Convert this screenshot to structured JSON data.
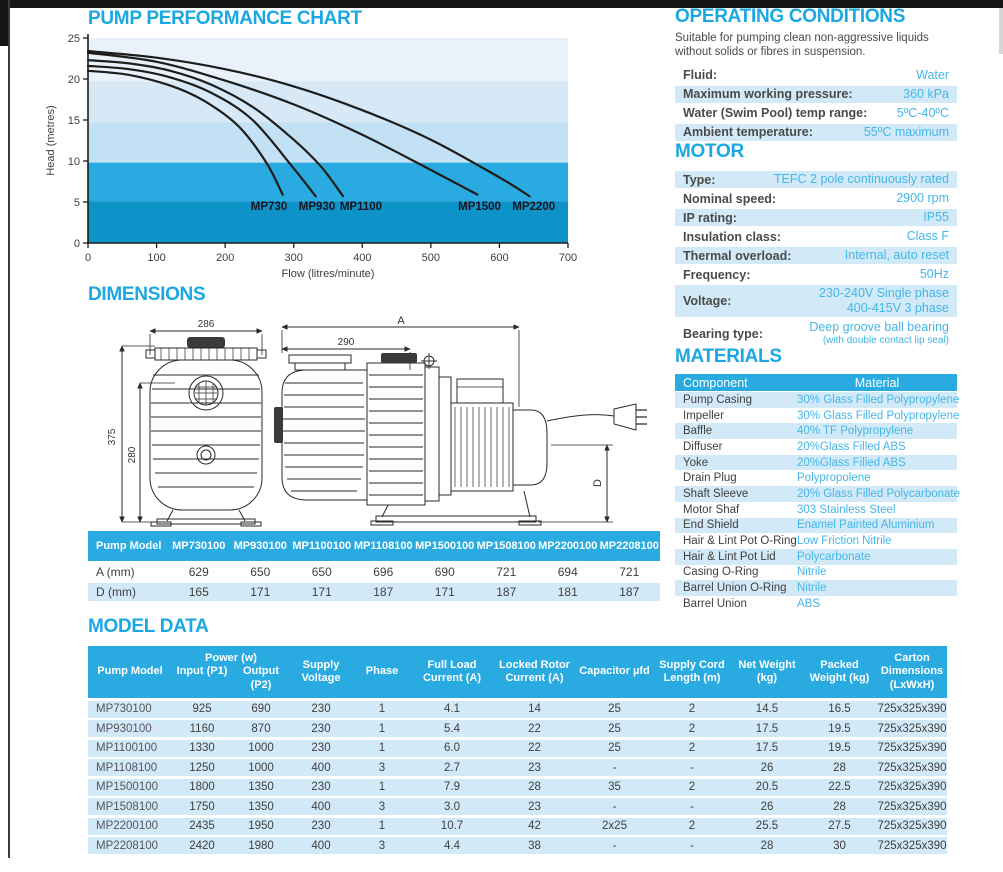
{
  "theme": {
    "accent": "#1ba8e2",
    "table_header_bg": "#29abe2",
    "row_light": "#d2eaf8",
    "value_text": "#45b6e8",
    "curve_color": "#1d1d1b"
  },
  "chart_data": {
    "type": "line",
    "title": "PUMP PERFORMANCE CHART",
    "xlabel": "Flow (litres/minute)",
    "ylabel": "Head (metres)",
    "xlim": [
      0,
      700
    ],
    "ylim": [
      0,
      25
    ],
    "xticks": [
      0,
      100,
      200,
      300,
      400,
      500,
      600,
      700
    ],
    "yticks": [
      0,
      5,
      10,
      15,
      20,
      25
    ],
    "grid": false,
    "legend_position": "labels-on-plot",
    "background_bands": [
      {
        "from": 19.7,
        "to": 25,
        "color": "#e9f2fa"
      },
      {
        "from": 14.7,
        "to": 19.7,
        "color": "#d7e9f7"
      },
      {
        "from": 9.8,
        "to": 14.7,
        "color": "#c3e1f4"
      },
      {
        "from": 5.1,
        "to": 9.8,
        "color": "#29abe2"
      },
      {
        "from": 0,
        "to": 5.1,
        "color": "#0d93c7"
      }
    ],
    "series": [
      {
        "name": "MP730",
        "label_x": 264,
        "points": [
          [
            0,
            21.0
          ],
          [
            60,
            20.5
          ],
          [
            120,
            19.2
          ],
          [
            170,
            17.3
          ],
          [
            220,
            14.2
          ],
          [
            260,
            9.8
          ],
          [
            284,
            5.9
          ]
        ]
      },
      {
        "name": "MP930",
        "label_x": 334,
        "points": [
          [
            0,
            21.6
          ],
          [
            60,
            21.2
          ],
          [
            120,
            20.2
          ],
          [
            180,
            18.3
          ],
          [
            240,
            15.0
          ],
          [
            300,
            9.1
          ],
          [
            332,
            5.7
          ]
        ]
      },
      {
        "name": "MP1100",
        "label_x": 398,
        "points": [
          [
            0,
            22.3
          ],
          [
            60,
            21.9
          ],
          [
            120,
            21.0
          ],
          [
            180,
            19.3
          ],
          [
            240,
            16.6
          ],
          [
            300,
            12.6
          ],
          [
            340,
            9.3
          ],
          [
            372,
            5.7
          ]
        ]
      },
      {
        "name": "MP1500",
        "label_x": 571,
        "points": [
          [
            0,
            23.2
          ],
          [
            100,
            22.1
          ],
          [
            200,
            19.8
          ],
          [
            300,
            16.9
          ],
          [
            400,
            13.2
          ],
          [
            500,
            8.9
          ],
          [
            568,
            5.9
          ]
        ]
      },
      {
        "name": "MP2200",
        "label_x": 650,
        "points": [
          [
            0,
            23.4
          ],
          [
            100,
            22.6
          ],
          [
            200,
            21.2
          ],
          [
            300,
            19.1
          ],
          [
            400,
            16.2
          ],
          [
            500,
            12.6
          ],
          [
            600,
            8.0
          ],
          [
            644,
            5.7
          ]
        ]
      }
    ]
  },
  "dimensions_section": {
    "title": "DIMENSIONS",
    "diagram_labels": {
      "front_width": "286",
      "front_height": "375",
      "front_inner_height": "280",
      "side_front_width": "290",
      "side_total_width": "A",
      "side_height": "D"
    },
    "table": {
      "header": [
        "Pump Model",
        "MP730100",
        "MP930100",
        "MP1100100",
        "MP1108100",
        "MP1500100",
        "MP1508100",
        "MP2200100",
        "MP2208100"
      ],
      "rows": [
        {
          "label": "A (mm)",
          "values": [
            "629",
            "650",
            "650",
            "696",
            "690",
            "721",
            "694",
            "721"
          ]
        },
        {
          "label": "D (mm)",
          "values": [
            "165",
            "171",
            "171",
            "187",
            "171",
            "187",
            "181",
            "187"
          ]
        }
      ]
    }
  },
  "operating_conditions": {
    "title": "OPERATING CONDITIONS",
    "intro": "Suitable for pumping clean non-aggressive liquids without solids or fibres in suspension.",
    "rows": [
      {
        "label": "Fluid:",
        "values": [
          "Water"
        ]
      },
      {
        "label": "Maximum working pressure:",
        "values": [
          "360 kPa"
        ]
      },
      {
        "label": "Water (Swim Pool) temp range:",
        "values": [
          "5ºC-40ºC"
        ]
      },
      {
        "label": "Ambient temperature:",
        "values": [
          "55ºC maximum"
        ]
      }
    ]
  },
  "motor": {
    "title": "MOTOR",
    "rows": [
      {
        "label": "Type:",
        "values": [
          "TEFC 2 pole continuously rated"
        ]
      },
      {
        "label": "Nominal speed:",
        "values": [
          "2900 rpm"
        ]
      },
      {
        "label": "IP rating:",
        "values": [
          "IP55"
        ]
      },
      {
        "label": "Insulation class:",
        "values": [
          "Class F"
        ]
      },
      {
        "label": "Thermal overload:",
        "values": [
          "Internal, auto reset"
        ]
      },
      {
        "label": "Frequency:",
        "values": [
          "50Hz"
        ]
      },
      {
        "label": "Voltage:",
        "values": [
          "230-240V Single phase",
          "400-415V 3 phase"
        ]
      },
      {
        "label": "Bearing type:",
        "values": [
          "Deep groove ball bearing"
        ],
        "note": "(with double contact lip seal)"
      }
    ]
  },
  "materials": {
    "title": "MATERIALS",
    "header": {
      "component": "Component",
      "material": "Material"
    },
    "rows": [
      {
        "component": "Pump Casing",
        "material": "30% Glass Filled Polypropylene"
      },
      {
        "component": "Impeller",
        "material": "30% Glass Filled Polypropylene"
      },
      {
        "component": "Baffle",
        "material": "40% TF Polypropylene"
      },
      {
        "component": "Diffuser",
        "material": "20%Glass Filled ABS"
      },
      {
        "component": "Yoke",
        "material": "20%Glass Filled ABS"
      },
      {
        "component": "Drain Plug",
        "material": "Polypropolene"
      },
      {
        "component": "Shaft Sleeve",
        "material": "20% Glass Filled Polycarbonate"
      },
      {
        "component": "Motor Shaf",
        "material": "303 Stainless Steel"
      },
      {
        "component": "End Shield",
        "material": "Enamel Painted Aluminium"
      },
      {
        "component": "Hair & Lint Pot O-Ring",
        "material": "Low Friction Nitrile"
      },
      {
        "component": "Hair & Lint Pot Lid",
        "material": "Polycarbonate"
      },
      {
        "component": "Casing O-Ring",
        "material": "Nitrile"
      },
      {
        "component": "Barrel Union O-Ring",
        "material": "Nitrile"
      },
      {
        "component": "Barrel Union",
        "material": "ABS"
      }
    ]
  },
  "model_data": {
    "title": "MODEL DATA",
    "header": {
      "pump_model": "Pump Model",
      "power_group": "Power (w)",
      "power_input": "Input (P1)",
      "power_output": "Output (P2)",
      "supply_voltage": "Supply Voltage",
      "phase": "Phase",
      "full_load_current": "Full Load Current (A)",
      "locked_rotor_current": "Locked Rotor Current (A)",
      "capacitor": "Capacitor µfd",
      "supply_cord_length": "Supply Cord Length (m)",
      "net_weight": "Net Weight (kg)",
      "packed_weight": "Packed Weight (kg)",
      "carton_dimensions": "Carton Dimensions (LxWxH)"
    },
    "rows": [
      [
        "MP730100",
        "925",
        "690",
        "230",
        "1",
        "4.1",
        "14",
        "25",
        "2",
        "14.5",
        "16.5",
        "725x325x390"
      ],
      [
        "MP930100",
        "1160",
        "870",
        "230",
        "1",
        "5.4",
        "22",
        "25",
        "2",
        "17.5",
        "19.5",
        "725x325x390"
      ],
      [
        "MP1100100",
        "1330",
        "1000",
        "230",
        "1",
        "6.0",
        "22",
        "25",
        "2",
        "17.5",
        "19.5",
        "725x325x390"
      ],
      [
        "MP1108100",
        "1250",
        "1000",
        "400",
        "3",
        "2.7",
        "23",
        "-",
        "-",
        "26",
        "28",
        "725x325x390"
      ],
      [
        "MP1500100",
        "1800",
        "1350",
        "230",
        "1",
        "7.9",
        "28",
        "35",
        "2",
        "20.5",
        "22.5",
        "725x325x390"
      ],
      [
        "MP1508100",
        "1750",
        "1350",
        "400",
        "3",
        "3.0",
        "23",
        "-",
        "-",
        "26",
        "28",
        "725x325x390"
      ],
      [
        "MP2200100",
        "2435",
        "1950",
        "230",
        "1",
        "10.7",
        "42",
        "2x25",
        "2",
        "25.5",
        "27.5",
        "725x325x390"
      ],
      [
        "MP2208100",
        "2420",
        "1980",
        "400",
        "3",
        "4.4",
        "38",
        "-",
        "-",
        "28",
        "30",
        "725x325x390"
      ]
    ]
  }
}
